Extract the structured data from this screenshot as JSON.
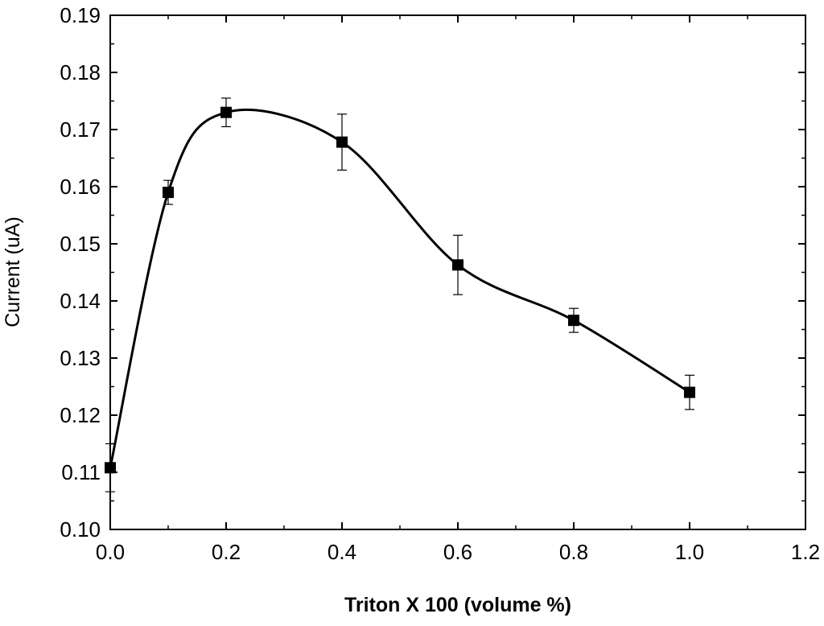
{
  "chart_data": {
    "type": "line",
    "title": "",
    "xlabel": "Triton X 100 (volume %)",
    "ylabel": "Current (uA)",
    "xlim": [
      0.0,
      1.2
    ],
    "ylim": [
      0.1,
      0.19
    ],
    "x_ticks": [
      "0.0",
      "0.2",
      "0.4",
      "0.6",
      "0.8",
      "1.0",
      "1.2"
    ],
    "y_ticks": [
      "0.10",
      "0.11",
      "0.12",
      "0.13",
      "0.14",
      "0.15",
      "0.16",
      "0.17",
      "0.18",
      "0.19"
    ],
    "grid": false,
    "legend": "none",
    "line_style": "smooth spline",
    "marker": "filled square",
    "series": [
      {
        "x": [
          0.0,
          0.1,
          0.2,
          0.4,
          0.6,
          0.8,
          1.0
        ],
        "y": [
          0.1108,
          0.159,
          0.173,
          0.1678,
          0.1463,
          0.1366,
          0.124
        ],
        "error": [
          0.0042,
          0.0021,
          0.0025,
          0.0049,
          0.0052,
          0.0021,
          0.003
        ]
      }
    ],
    "colors": {
      "line": "#000000",
      "marker": "#000000",
      "axes": "#000000",
      "background": "#ffffff"
    }
  }
}
